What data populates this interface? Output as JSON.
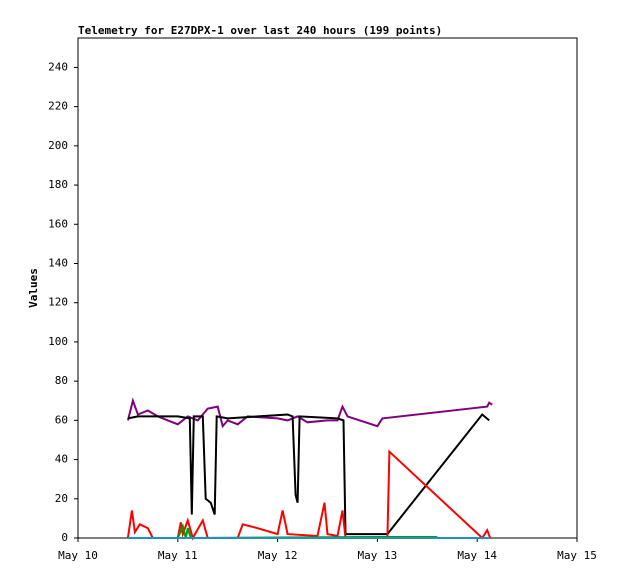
{
  "chart_data": {
    "type": "line",
    "title": "Telemetry for E27DPX-1 over last 240 hours (199 points)",
    "y_label": "Values",
    "xlim": [
      0,
      5
    ],
    "xticks": [
      {
        "value": 0,
        "label": "May 10"
      },
      {
        "value": 1,
        "label": "May 11"
      },
      {
        "value": 2,
        "label": "May 12"
      },
      {
        "value": 3,
        "label": "May 13"
      },
      {
        "value": 4,
        "label": "May 14"
      },
      {
        "value": 5,
        "label": "May 15"
      }
    ],
    "ylim": [
      0,
      255
    ],
    "yticks": [
      0,
      20,
      40,
      60,
      80,
      100,
      120,
      140,
      160,
      180,
      200,
      220,
      240
    ],
    "grid": false,
    "series": [
      {
        "color": "#800080",
        "x": [
          0.5,
          0.55,
          0.6,
          0.7,
          0.8,
          0.9,
          1.0,
          1.1,
          1.2,
          1.3,
          1.4,
          1.45,
          1.5,
          1.6,
          1.7,
          2.0,
          2.1,
          2.2,
          2.3,
          2.5,
          2.6,
          2.65,
          2.7,
          3.0,
          3.05,
          4.1,
          4.12,
          4.15
        ],
        "values": [
          60,
          70,
          63,
          65,
          62,
          60,
          58,
          62,
          60,
          66,
          67,
          57,
          60,
          58,
          62,
          61,
          60,
          62,
          59,
          60,
          60,
          67,
          62,
          57,
          61,
          67,
          69,
          68
        ]
      },
      {
        "color": "#000000",
        "x": [
          0.5,
          0.6,
          1.0,
          1.12,
          1.14,
          1.16,
          1.25,
          1.28,
          1.33,
          1.37,
          1.39,
          1.5,
          2.1,
          2.15,
          2.18,
          2.2,
          2.22,
          2.6,
          2.66,
          2.68,
          3.1,
          4.05,
          4.12
        ],
        "values": [
          61,
          62,
          62,
          61,
          12,
          62,
          62,
          20,
          18,
          12,
          62,
          61,
          63,
          62,
          22,
          18,
          62,
          61,
          60,
          2,
          2,
          63,
          60
        ]
      },
      {
        "color": "#ff0000",
        "x": [
          0.5,
          0.54,
          0.57,
          0.62,
          0.7,
          0.75,
          1.0,
          1.03,
          1.05,
          1.1,
          1.15,
          1.25,
          1.3,
          1.6,
          1.65,
          1.8,
          2.0,
          2.05,
          2.1,
          2.4,
          2.47,
          2.5,
          2.6,
          2.65,
          2.68,
          3.0,
          3.1,
          3.12,
          4.05,
          4.1,
          4.13
        ],
        "values": [
          0,
          14,
          3,
          7,
          5,
          0,
          0,
          8,
          2,
          9,
          0,
          9,
          0,
          0,
          7,
          5,
          2,
          14,
          2,
          1,
          18,
          2,
          1,
          14,
          0,
          0,
          0,
          44,
          0,
          4,
          0
        ]
      },
      {
        "color": "#00a000",
        "x": [
          1.0,
          1.05,
          1.08,
          1.1,
          1.13,
          3.0,
          3.6
        ],
        "values": [
          0,
          6,
          0,
          5,
          0,
          0.5,
          0.5
        ]
      },
      {
        "color": "#1e90c8",
        "x": [
          0.5,
          4.13
        ],
        "values": [
          0,
          0
        ]
      }
    ]
  }
}
